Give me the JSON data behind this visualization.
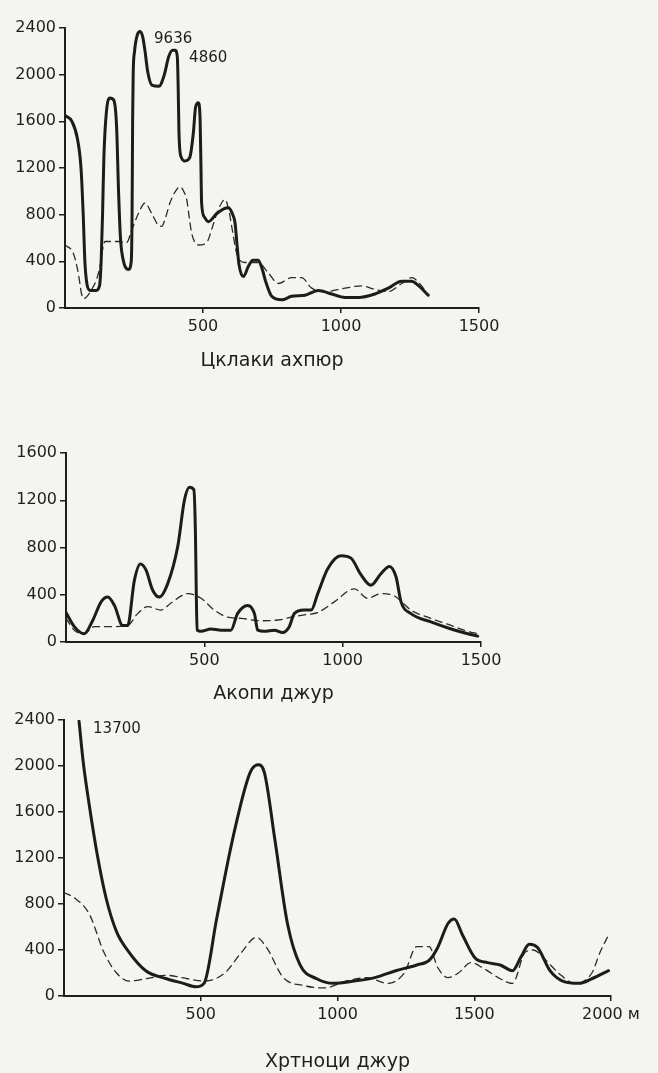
{
  "chart_data": [
    {
      "type": "line",
      "xlabel": "Цклаки ахпюр",
      "xlim": [
        0,
        1500
      ],
      "xticks": [
        500,
        1000,
        1500
      ],
      "ylim": [
        0,
        2400
      ],
      "yticks": [
        0,
        400,
        800,
        1200,
        1600,
        2000,
        2400
      ],
      "annotations": [
        {
          "text": "9636",
          "x": 272,
          "y": 2370
        },
        {
          "text": "4860",
          "x": 399,
          "y": 2210
        }
      ],
      "series": [
        {
          "color": "#1c1c1c",
          "line_style": "solid",
          "x": [
            0,
            25,
            45,
            58,
            66,
            72,
            80,
            92,
            112,
            125,
            131,
            136,
            141,
            150,
            163,
            177,
            187,
            194,
            201,
            212,
            230,
            240,
            243,
            245,
            247,
            252,
            262,
            272,
            282,
            290,
            300,
            315,
            340,
            360,
            375,
            390,
            399,
            407,
            410,
            413,
            420,
            435,
            452,
            465,
            473,
            483,
            489,
            492,
            495,
            505,
            519,
            550,
            575,
            592,
            608,
            616,
            623,
            630,
            646,
            665,
            680,
            700,
            715,
            728,
            749,
            785,
            821,
            870,
            918,
            966,
            1014,
            1063,
            1123,
            1171,
            1220,
            1256,
            1282,
            1316
          ],
          "values": [
            1650,
            1600,
            1450,
            1200,
            800,
            400,
            200,
            150,
            150,
            190,
            400,
            800,
            1300,
            1680,
            1800,
            1780,
            1550,
            1000,
            600,
            400,
            330,
            400,
            800,
            1600,
            2000,
            2200,
            2340,
            2370,
            2320,
            2200,
            2020,
            1910,
            1900,
            2000,
            2150,
            2210,
            2210,
            2150,
            1900,
            1500,
            1300,
            1260,
            1290,
            1500,
            1720,
            1760,
            1650,
            1300,
            900,
            780,
            740,
            810,
            850,
            860,
            800,
            730,
            550,
            380,
            270,
            360,
            410,
            410,
            330,
            220,
            100,
            70,
            100,
            110,
            150,
            120,
            90,
            90,
            120,
            170,
            230,
            230,
            190,
            110
          ]
        },
        {
          "color": "#2a2a2a",
          "line_style": "dashed",
          "x": [
            0,
            30,
            48,
            60,
            68,
            80,
            97,
            115,
            127,
            138,
            145,
            193,
            223,
            242,
            266,
            290,
            314,
            335,
            350,
            365,
            380,
            400,
            417,
            430,
            441,
            450,
            459,
            483,
            513,
            535,
            550,
            580,
            595,
            604,
            622,
            652,
            700,
            737,
            773,
            821,
            857,
            894,
            942,
            1014,
            1075,
            1123,
            1171,
            1220,
            1256,
            1292,
            1310
          ],
          "values": [
            540,
            470,
            300,
            120,
            80,
            100,
            160,
            250,
            360,
            520,
            570,
            570,
            560,
            670,
            810,
            900,
            810,
            720,
            700,
            780,
            900,
            1000,
            1040,
            1000,
            930,
            780,
            640,
            540,
            560,
            700,
            810,
            930,
            820,
            700,
            470,
            390,
            390,
            300,
            210,
            260,
            260,
            170,
            140,
            170,
            190,
            160,
            140,
            210,
            260,
            190,
            130
          ]
        }
      ]
    },
    {
      "type": "line",
      "xlabel": "Акопи джур",
      "xlim": [
        0,
        1500
      ],
      "xticks": [
        500,
        1000,
        1500
      ],
      "ylim": [
        0,
        1600
      ],
      "yticks": [
        0,
        400,
        800,
        1200,
        1600
      ],
      "series": [
        {
          "color": "#1c1c1c",
          "line_style": "solid",
          "x": [
            0,
            30,
            66,
            96,
            127,
            151,
            175,
            205,
            223,
            247,
            269,
            289,
            313,
            337,
            367,
            404,
            428,
            446,
            462,
            468,
            471,
            474,
            488,
            524,
            560,
            596,
            620,
            657,
            681,
            693,
            717,
            753,
            783,
            807,
            825,
            861,
            886,
            910,
            946,
            994,
            1030,
            1066,
            1102,
            1139,
            1169,
            1193,
            1211,
            1247,
            1319,
            1392,
            1452,
            1488
          ],
          "values": [
            250,
            130,
            70,
            180,
            340,
            380,
            310,
            140,
            140,
            520,
            660,
            610,
            440,
            380,
            490,
            810,
            1200,
            1310,
            1290,
            900,
            400,
            100,
            90,
            110,
            100,
            100,
            240,
            310,
            240,
            100,
            90,
            100,
            80,
            130,
            240,
            270,
            270,
            410,
            620,
            730,
            710,
            570,
            480,
            580,
            640,
            550,
            340,
            240,
            170,
            110,
            70,
            50
          ]
        },
        {
          "color": "#2a2a2a",
          "line_style": "dashed",
          "x": [
            0,
            30,
            66,
            102,
            151,
            223,
            259,
            295,
            343,
            380,
            440,
            488,
            536,
            584,
            633,
            705,
            777,
            813,
            861,
            910,
            970,
            1042,
            1090,
            1139,
            1187,
            1247,
            1319,
            1392,
            1452,
            1488
          ],
          "values": [
            200,
            100,
            70,
            130,
            130,
            140,
            240,
            300,
            270,
            330,
            410,
            370,
            270,
            210,
            200,
            180,
            190,
            210,
            230,
            250,
            340,
            450,
            370,
            410,
            390,
            270,
            200,
            140,
            90,
            70
          ]
        }
      ]
    },
    {
      "type": "line",
      "xlabel": "Хртноци джур",
      "xlim": [
        0,
        2000
      ],
      "xticks": [
        500,
        1000,
        1500,
        {
          "value": 2000,
          "label": "2000 м"
        }
      ],
      "ylim": [
        0,
        2400
      ],
      "yticks": [
        0,
        400,
        800,
        1200,
        1600,
        2000,
        2400
      ],
      "annotations": [
        {
          "text": "13700",
          "x": 55,
          "y": 2390
        }
      ],
      "series": [
        {
          "color": "#1c1c1c",
          "line_style": "solid",
          "x": [
            55,
            70,
            93,
            123,
            154,
            192,
            238,
            299,
            375,
            436,
            482,
            512,
            558,
            619,
            680,
            710,
            733,
            771,
            817,
            863,
            924,
            985,
            1061,
            1137,
            1213,
            1290,
            1335,
            1366,
            1404,
            1427,
            1457,
            1503,
            1549,
            1595,
            1640,
            1671,
            1701,
            1732,
            1777,
            1823,
            1884,
            1930,
            1991
          ],
          "values": [
            2390,
            2040,
            1650,
            1210,
            850,
            560,
            380,
            220,
            150,
            110,
            80,
            110,
            670,
            1390,
            1940,
            2010,
            1940,
            1360,
            630,
            270,
            150,
            110,
            130,
            160,
            220,
            270,
            310,
            420,
            630,
            670,
            530,
            330,
            290,
            270,
            220,
            340,
            450,
            420,
            220,
            130,
            110,
            150,
            220
          ]
        },
        {
          "color": "#2a2a2a",
          "line_style": "dashed",
          "x": [
            0,
            40,
            93,
            146,
            192,
            238,
            299,
            375,
            451,
            512,
            588,
            649,
            703,
            741,
            802,
            878,
            954,
            1030,
            1107,
            1183,
            1244,
            1290,
            1335,
            1366,
            1404,
            1442,
            1488,
            1534,
            1595,
            1640,
            1686,
            1716,
            1762,
            1808,
            1869,
            1930,
            1960,
            1991
          ],
          "values": [
            900,
            850,
            710,
            380,
            200,
            130,
            150,
            180,
            150,
            130,
            200,
            380,
            510,
            420,
            160,
            90,
            70,
            130,
            160,
            110,
            200,
            430,
            430,
            250,
            160,
            200,
            290,
            240,
            150,
            110,
            380,
            400,
            310,
            200,
            110,
            200,
            380,
            530
          ]
        }
      ]
    }
  ]
}
